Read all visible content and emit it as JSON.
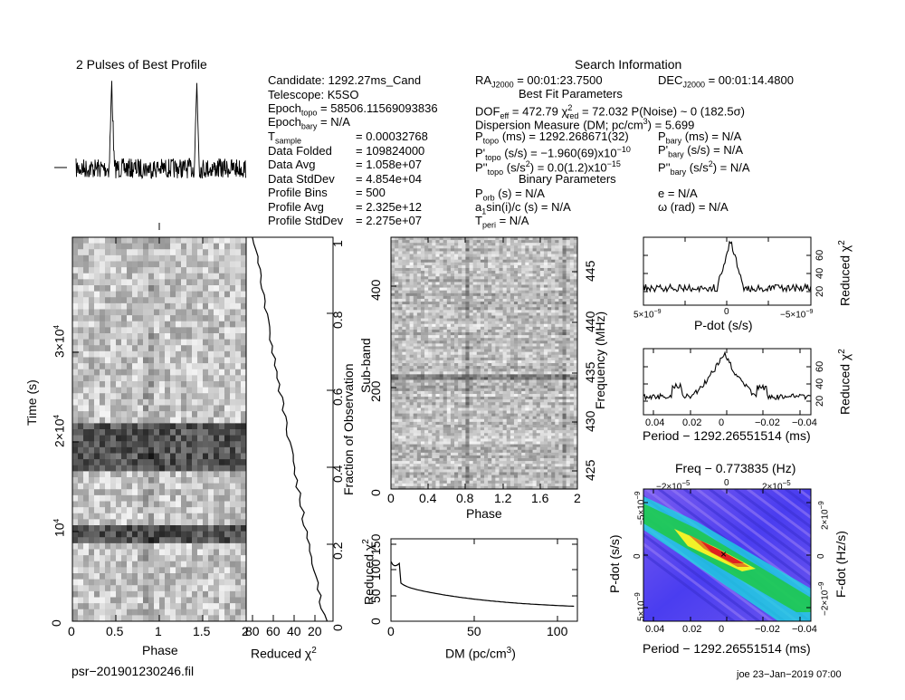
{
  "profile_title": "2 Pulses of Best Profile",
  "search_info_title": "Search Information",
  "best_fit_title": "Best Fit Parameters",
  "binary_title": "Binary Parameters",
  "candidate_info": {
    "candidate": "Candidate:  1292.27ms_Cand",
    "telescope": "Telescope:  K5SO",
    "epoch_topo": "Epoch",
    "epoch_topo_sub": "topo",
    "epoch_topo_val": " = 58506.11569093836",
    "epoch_bary": "Epoch",
    "epoch_bary_sub": "bary",
    "epoch_bary_val": " = N/A",
    "rows": [
      {
        "label": "T",
        "sub": "sample",
        "eq": "=",
        "value": "0.00032768"
      },
      {
        "label": "Data Folded",
        "sub": "",
        "eq": "=",
        "value": "109824000"
      },
      {
        "label": "Data Avg",
        "sub": "",
        "eq": "=",
        "value": "1.058e+07"
      },
      {
        "label": "Data StdDev",
        "sub": "",
        "eq": "=",
        "value": "4.854e+04"
      },
      {
        "label": "Profile Bins",
        "sub": "",
        "eq": "=",
        "value": "500"
      },
      {
        "label": "Profile Avg",
        "sub": "",
        "eq": "=",
        "value": "2.325e+12"
      },
      {
        "label": "Profile StdDev",
        "sub": "",
        "eq": "=",
        "value": "2.275e+07"
      }
    ]
  },
  "search_info": {
    "ra": "RA",
    "ra_sub": "J2000",
    "ra_val": " = 00:01:23.7500",
    "dec": "DEC",
    "dec_sub": "J2000",
    "dec_val": " = 00:01:14.4800",
    "dof": "DOF",
    "dof_sub": "eff",
    "dof_val": " = 472.79  χ",
    "chi_sup": "2",
    "chi_sub": "red",
    "chi_val": " = 72.032  P(Noise) ~ 0   (182.5σ)",
    "dm_line": "Dispersion Measure (DM; pc/cm",
    "dm_sup": "3",
    "dm_val": ") = 5.699",
    "p_topo": "P",
    "p_topo_sub": "topo",
    "p_topo_val": " (ms)  =  1292.268671(32)",
    "pd_topo": "P'",
    "pd_topo_sub": "topo",
    "pd_topo_val": " (s/s) = −1.960(69)x10",
    "pd_topo_exp": "−10",
    "pdd_topo": "P''",
    "pdd_topo_sub": "topo",
    "pdd_topo_val": " (s/s",
    "pdd_sup": "2",
    "pdd_topo_val2": ") = 0.0(1.2)x10",
    "pdd_exp": "−15",
    "p_bary": "P",
    "p_bary_sub": "bary",
    "p_bary_val": " (ms) = N/A",
    "pd_bary": "P'",
    "pd_bary_sub": "bary",
    "pd_bary_val": " (s/s) = N/A",
    "pdd_bary": "P''",
    "pdd_bary_sub": "bary",
    "pdd_bary_val": " (s/s",
    "pdd_bary_sup": "2",
    "pdd_bary_val2": ") = N/A",
    "porb": "P",
    "porb_sub": "orb",
    "porb_val": " (s) = N/A",
    "a1": "a",
    "a1_sub": "1",
    "a1_val": "sin(i)/c (s) = N/A",
    "tperi": "T",
    "tperi_sub": "peri",
    "tperi_val": " = N/A",
    "e": "e = N/A",
    "omega": "ω (rad) = N/A"
  },
  "time_phase_plot": {
    "ylabel": "Time (s)",
    "xlabel": "Phase",
    "yticks": [
      "0",
      "10",
      "2×10",
      "3×10"
    ],
    "ytick_sup": "4",
    "xticks": [
      "0",
      "0.5",
      "1",
      "1.5",
      "2"
    ]
  },
  "chi_vs_time": {
    "xlabel": "Reduced χ",
    "xlabel_sup": "2",
    "xticks": [
      "80",
      "60",
      "40",
      "20"
    ],
    "right_label": "Fraction of Observation",
    "right_ticks": [
      "0",
      "0.2",
      "0.4",
      "0.6",
      "0.8",
      "1"
    ]
  },
  "subband_plot": {
    "ylabel": "Sub-band",
    "right_label": "Frequency (MHz)",
    "xlabel": "Phase",
    "yticks": [
      "0",
      "200",
      "400"
    ],
    "right_ticks": [
      "425",
      "430",
      "435",
      "440",
      "445"
    ],
    "xticks": [
      "0",
      "0.4",
      "0.8",
      "1.2",
      "1.6",
      "2"
    ]
  },
  "dm_plot": {
    "ylabel": "Reduced χ",
    "ylabel_sup": "2",
    "xlabel": "DM (pc/cm",
    "xlabel_sup": "3",
    "xlabel_end": ")",
    "yticks": [
      "0",
      "50",
      "100",
      "150"
    ],
    "xticks": [
      "0",
      "50",
      "100"
    ]
  },
  "pdot_plot": {
    "xlabel": "P-dot (s/s)",
    "ylabel": "Reduced χ",
    "ylabel_sup": "2",
    "xtick_left": "5×10",
    "xtick_left_sup": "−9",
    "xtick_mid": "0",
    "xtick_right": "−5×10",
    "xtick_right_sup": "−9",
    "yticks": [
      "20",
      "40",
      "60"
    ]
  },
  "period_plot": {
    "xlabel": "Period − 1292.26551514 (ms)",
    "ylabel": "Reduced χ",
    "ylabel_sup": "2",
    "xticks": [
      "0.04",
      "0.02",
      "0",
      "−0.02",
      "−0.04"
    ],
    "yticks": [
      "20",
      "40",
      "60"
    ]
  },
  "contour_plot": {
    "title": "Freq − 0.773835 (Hz)",
    "top_ticks": [
      "−2×10",
      "0",
      "2×10"
    ],
    "top_tick_sup": "−5",
    "ylabel": "P-dot (s/s)",
    "right_label": "F-dot (Hz/s)",
    "left_tick_top": "−5×10",
    "left_tick_bot": "5×10",
    "left_tick_sup": "−9",
    "left_mid": "0",
    "right_tick_top": "2×10",
    "right_tick_bot": "−2×10",
    "right_tick_sup": "−9",
    "right_mid": "0",
    "xlabel": "Period − 1292.26551514 (ms)",
    "xticks": [
      "0.04",
      "0.02",
      "0",
      "−0.02",
      "−0.04"
    ]
  },
  "footer": {
    "filename": "psr−201901230246.fil",
    "stamp": "joe 23−Jan−2019 07:00"
  },
  "colors": {
    "contour_bg": "#4a3df0",
    "contour_cyan": "#19e0e0",
    "contour_green": "#1ec93c",
    "contour_red": "#e02020"
  }
}
